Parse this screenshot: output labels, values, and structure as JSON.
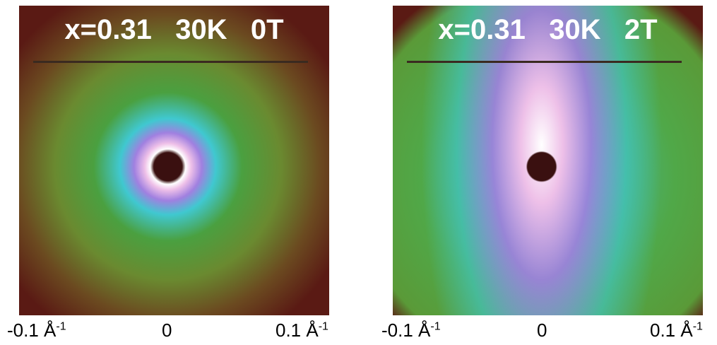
{
  "panels": [
    {
      "title": "x=0.31   30K   0T",
      "ticks": [
        {
          "base": "-0.1 Å",
          "sup": "-1"
        },
        {
          "base": "0"
        },
        {
          "base": "0.1 Å",
          "sup": "-1"
        }
      ]
    },
    {
      "title": "x=0.31   30K   2T",
      "ticks": [
        {
          "base": "-0.1 Å",
          "sup": "-1"
        },
        {
          "base": "0"
        },
        {
          "base": "0.1 Å",
          "sup": "-1"
        }
      ]
    }
  ]
}
